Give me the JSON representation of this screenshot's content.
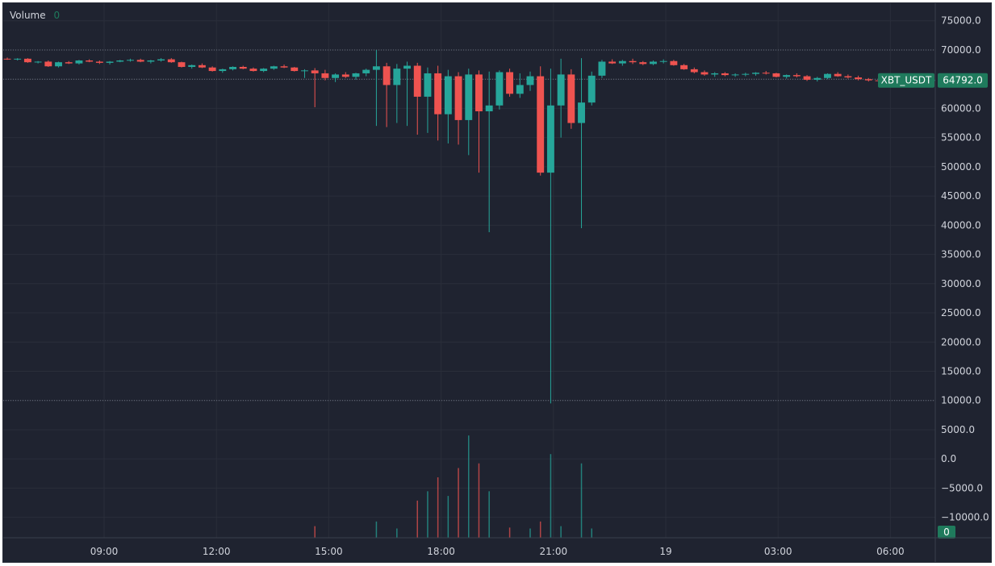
{
  "legend": {
    "title": "Volume",
    "value": "0"
  },
  "chart_data": {
    "type": "candlestick",
    "symbol": "XBT_USDT",
    "last_price": "64792.0",
    "volume_badge": "0",
    "y_ticks": [
      "75000.0",
      "70000.0",
      "65000.0",
      "60000.0",
      "55000.0",
      "50000.0",
      "45000.0",
      "40000.0",
      "35000.0",
      "30000.0",
      "25000.0",
      "20000.0",
      "15000.0",
      "10000.0",
      "5000.0",
      "0.0",
      "−5000.0",
      "−10000.0"
    ],
    "ylim": [
      -13500,
      78000
    ],
    "x_ticks": [
      "09:00",
      "12:00",
      "15:00",
      "18:00",
      "21:00",
      "19",
      "03:00",
      "06:00"
    ],
    "colors": {
      "up": "#26a69a",
      "down": "#ef5350",
      "badge": "#1f7a5c"
    },
    "candles": [
      [
        0,
        68500,
        68700,
        68300,
        68400
      ],
      [
        1,
        68400,
        68600,
        68200,
        68500
      ],
      [
        2,
        68500,
        68600,
        67800,
        67900
      ],
      [
        3,
        67900,
        68100,
        67700,
        68000
      ],
      [
        4,
        68000,
        68200,
        67100,
        67200
      ],
      [
        5,
        67200,
        68000,
        67000,
        67900
      ],
      [
        6,
        67900,
        68100,
        67600,
        67700
      ],
      [
        7,
        67700,
        68300,
        67500,
        68200
      ],
      [
        8,
        68200,
        68400,
        67900,
        68000
      ],
      [
        9,
        68000,
        68200,
        67600,
        67800
      ],
      [
        10,
        67800,
        68100,
        67500,
        68000
      ],
      [
        11,
        68000,
        68300,
        67900,
        68200
      ],
      [
        12,
        68200,
        68500,
        68000,
        68300
      ],
      [
        13,
        68300,
        68500,
        67900,
        68000
      ],
      [
        14,
        68000,
        68300,
        67700,
        68200
      ],
      [
        15,
        68200,
        68600,
        68000,
        68400
      ],
      [
        16,
        68400,
        68600,
        67800,
        67900
      ],
      [
        17,
        67900,
        68000,
        67000,
        67100
      ],
      [
        18,
        67100,
        67500,
        66800,
        67400
      ],
      [
        19,
        67400,
        67700,
        66900,
        67000
      ],
      [
        20,
        67000,
        67200,
        66300,
        66400
      ],
      [
        21,
        66400,
        66800,
        66100,
        66700
      ],
      [
        22,
        66700,
        67200,
        66500,
        67100
      ],
      [
        23,
        67100,
        67300,
        66700,
        66800
      ],
      [
        24,
        66800,
        67000,
        66300,
        66400
      ],
      [
        25,
        66400,
        66900,
        66200,
        66800
      ],
      [
        26,
        66800,
        67300,
        66600,
        67200
      ],
      [
        27,
        67200,
        67500,
        66900,
        67000
      ],
      [
        28,
        67000,
        67100,
        66300,
        66400
      ],
      [
        29,
        66400,
        66700,
        65200,
        66500
      ],
      [
        30,
        66500,
        66900,
        60200,
        66000
      ],
      [
        31,
        66000,
        66600,
        64800,
        65200
      ],
      [
        32,
        65200,
        66000,
        64500,
        65800
      ],
      [
        33,
        65800,
        66200,
        65200,
        65400
      ],
      [
        34,
        65400,
        66100,
        64900,
        66000
      ],
      [
        35,
        66000,
        66800,
        65500,
        66600
      ],
      [
        36,
        66600,
        70000,
        57000,
        67200
      ],
      [
        37,
        67200,
        67800,
        56800,
        64000
      ],
      [
        38,
        64000,
        67600,
        57500,
        66800
      ],
      [
        39,
        66800,
        68000,
        57000,
        67300
      ],
      [
        40,
        67300,
        67800,
        55500,
        62000
      ],
      [
        41,
        62000,
        67000,
        55800,
        66000
      ],
      [
        42,
        66000,
        67300,
        54500,
        59000
      ],
      [
        43,
        59000,
        66600,
        54000,
        65500
      ],
      [
        44,
        65500,
        66200,
        53800,
        58000
      ],
      [
        45,
        58000,
        66800,
        52000,
        65800
      ],
      [
        46,
        65800,
        66500,
        49000,
        59500
      ],
      [
        47,
        59500,
        66300,
        38800,
        60500
      ],
      [
        48,
        60500,
        66500,
        59800,
        66200
      ],
      [
        49,
        66200,
        66800,
        62000,
        62500
      ],
      [
        50,
        62500,
        66000,
        61800,
        64000
      ],
      [
        51,
        64000,
        66300,
        63000,
        65500
      ],
      [
        52,
        65500,
        67200,
        48500,
        49000
      ],
      [
        53,
        49000,
        66800,
        9500,
        60500
      ],
      [
        54,
        60500,
        68500,
        55000,
        65800
      ],
      [
        55,
        65800,
        66700,
        56500,
        57500
      ],
      [
        56,
        57500,
        68600,
        39500,
        61000
      ],
      [
        57,
        61000,
        66300,
        60500,
        65600
      ],
      [
        58,
        65600,
        68300,
        65200,
        68000
      ],
      [
        59,
        68000,
        68400,
        67600,
        67700
      ],
      [
        60,
        67700,
        68300,
        67300,
        68100
      ],
      [
        61,
        68100,
        68500,
        67600,
        67900
      ],
      [
        62,
        67900,
        68100,
        67400,
        67600
      ],
      [
        63,
        67600,
        68200,
        67400,
        68000
      ],
      [
        64,
        68000,
        68400,
        67700,
        68100
      ],
      [
        65,
        68100,
        68300,
        67300,
        67400
      ],
      [
        66,
        67400,
        67600,
        66600,
        66700
      ],
      [
        67,
        66700,
        67000,
        66000,
        66200
      ],
      [
        68,
        66200,
        66500,
        65600,
        65800
      ],
      [
        69,
        65800,
        66200,
        65400,
        66000
      ],
      [
        70,
        66000,
        66200,
        65500,
        65700
      ],
      [
        71,
        65700,
        66000,
        65400,
        65800
      ],
      [
        72,
        65800,
        66100,
        65500,
        65900
      ],
      [
        73,
        65900,
        66200,
        65600,
        66100
      ],
      [
        74,
        66100,
        66400,
        65800,
        66000
      ],
      [
        75,
        66000,
        66100,
        65300,
        65400
      ],
      [
        76,
        65400,
        65800,
        65100,
        65700
      ],
      [
        77,
        65700,
        66000,
        65300,
        65500
      ],
      [
        78,
        65500,
        65700,
        64700,
        64900
      ],
      [
        79,
        64900,
        65400,
        64600,
        65200
      ],
      [
        80,
        65200,
        66000,
        65000,
        65900
      ],
      [
        81,
        65900,
        66200,
        65400,
        65500
      ],
      [
        82,
        65500,
        65800,
        65100,
        65300
      ],
      [
        83,
        65300,
        65600,
        64800,
        65000
      ],
      [
        84,
        65000,
        65200,
        64600,
        64800
      ],
      [
        85,
        64800,
        65000,
        64600,
        64792
      ]
    ],
    "volume": [
      [
        30,
        2500
      ],
      [
        36,
        3500
      ],
      [
        38,
        2000
      ],
      [
        40,
        8000
      ],
      [
        41,
        10000
      ],
      [
        42,
        13000
      ],
      [
        43,
        9000
      ],
      [
        44,
        15000
      ],
      [
        45,
        22000
      ],
      [
        46,
        16000
      ],
      [
        47,
        10000
      ],
      [
        49,
        2200
      ],
      [
        51,
        2000
      ],
      [
        52,
        3500
      ],
      [
        53,
        18000
      ],
      [
        54,
        2500
      ],
      [
        56,
        16000
      ],
      [
        57,
        2000
      ]
    ]
  }
}
